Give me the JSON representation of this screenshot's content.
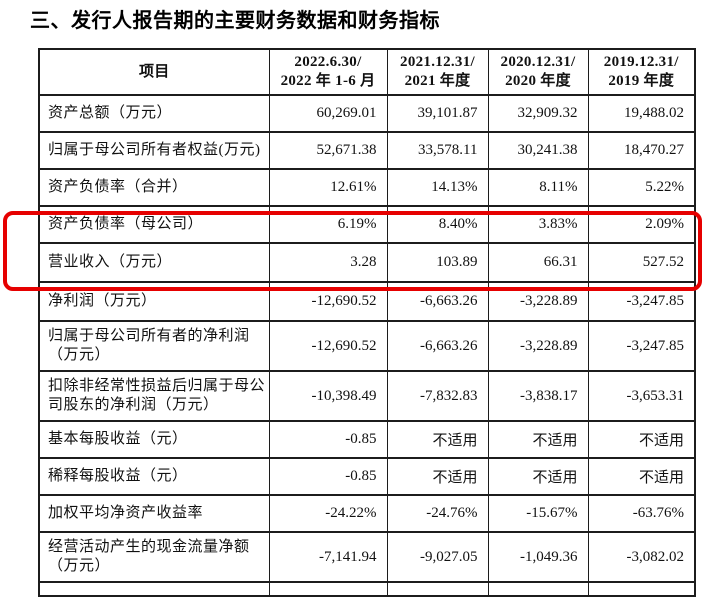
{
  "page": {
    "title": "三、发行人报告期的主要财务数据和财务指标"
  },
  "table": {
    "item_column_header": "项目",
    "period_headers": [
      [
        "2022.6.30/",
        "2022 年 1-6 月"
      ],
      [
        "2021.12.31/",
        "2021 年度"
      ],
      [
        "2020.12.31/",
        "2020 年度"
      ],
      [
        "2019.12.31/",
        "2019 年度"
      ]
    ],
    "rows": [
      {
        "label_lines": [
          "资产总额（万元）"
        ],
        "values": [
          "60,269.01",
          "39,101.87",
          "32,909.32",
          "19,488.02"
        ],
        "highlighted": false
      },
      {
        "label_lines": [
          "归属于母公司所有者权益(万元)"
        ],
        "values": [
          "52,671.38",
          "33,578.11",
          "30,241.38",
          "18,470.27"
        ],
        "highlighted": false
      },
      {
        "label_lines": [
          "资产负债率（合并）"
        ],
        "values": [
          "12.61%",
          "14.13%",
          "8.11%",
          "5.22%"
        ],
        "highlighted": false
      },
      {
        "label_lines": [
          "资产负债率（母公司）"
        ],
        "values": [
          "6.19%",
          "8.40%",
          "3.83%",
          "2.09%"
        ],
        "highlighted": false
      },
      {
        "label_lines": [
          "营业收入（万元）"
        ],
        "values": [
          "3.28",
          "103.89",
          "66.31",
          "527.52"
        ],
        "highlighted": true
      },
      {
        "label_lines": [
          "净利润（万元）"
        ],
        "values": [
          "-12,690.52",
          "-6,663.26",
          "-3,228.89",
          "-3,247.85"
        ],
        "highlighted": true
      },
      {
        "label_lines": [
          "归属于母公司所有者的净利润",
          "（万元）"
        ],
        "values": [
          "-12,690.52",
          "-6,663.26",
          "-3,228.89",
          "-3,247.85"
        ],
        "highlighted": false
      },
      {
        "label_lines": [
          "扣除非经常性损益后归属于母公",
          "司股东的净利润（万元）"
        ],
        "values": [
          "-10,398.49",
          "-7,832.83",
          "-3,838.17",
          "-3,653.31"
        ],
        "highlighted": false
      },
      {
        "label_lines": [
          "基本每股收益（元）"
        ],
        "values": [
          "-0.85",
          "不适用",
          "不适用",
          "不适用"
        ],
        "highlighted": false
      },
      {
        "label_lines": [
          "稀释每股收益（元）"
        ],
        "values": [
          "-0.85",
          "不适用",
          "不适用",
          "不适用"
        ],
        "highlighted": false
      },
      {
        "label_lines": [
          "加权平均净资产收益率"
        ],
        "values": [
          "-24.22%",
          "-24.76%",
          "-15.67%",
          "-63.76%"
        ],
        "highlighted": false
      },
      {
        "label_lines": [
          "经营活动产生的现金流量净额",
          "（万元）"
        ],
        "values": [
          "-7,141.94",
          "-9,027.05",
          "-1,049.36",
          "-3,082.02"
        ],
        "highlighted": false
      }
    ]
  },
  "highlight": {
    "border_color": "#e60000"
  }
}
